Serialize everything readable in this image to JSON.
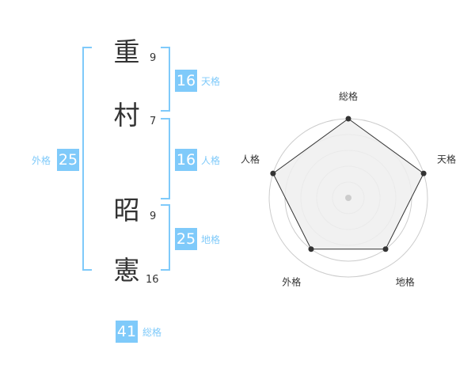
{
  "name": {
    "chars": [
      {
        "char": "重",
        "strokes": "9"
      },
      {
        "char": "村",
        "strokes": "7"
      },
      {
        "char": "昭",
        "strokes": "9"
      },
      {
        "char": "憲",
        "strokes": "16"
      }
    ]
  },
  "fortunes": {
    "tenkaku": {
      "value": "16",
      "label": "天格"
    },
    "jinkaku": {
      "value": "16",
      "label": "人格"
    },
    "chikaku": {
      "value": "25",
      "label": "地格"
    },
    "gaikaku": {
      "value": "25",
      "label": "外格"
    },
    "soukaku": {
      "value": "41",
      "label": "総格"
    }
  },
  "accent_color": "#7fcafa",
  "chart_data": {
    "type": "radar",
    "axes": [
      "総格",
      "天格",
      "地格",
      "外格",
      "人格"
    ],
    "values": [
      5,
      5,
      4,
      4,
      5
    ],
    "range": [
      0,
      5
    ],
    "rings": 5
  }
}
